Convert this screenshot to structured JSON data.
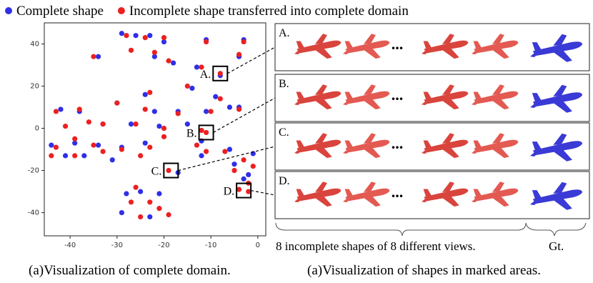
{
  "chart_data": {
    "type": "scatter",
    "series": [
      {
        "name": "Complete shape",
        "color": "#2f2fe8",
        "x": [
          -29,
          -26,
          -23,
          -20,
          -11,
          -3,
          -34,
          -22,
          -18,
          -13,
          -4,
          -14,
          -24,
          -9,
          -30,
          -42,
          -38,
          -22,
          -17,
          -11,
          -6,
          -4,
          -33,
          -27,
          -21,
          -15,
          -44,
          -39,
          -34,
          -29,
          -24,
          -12,
          -6,
          -41,
          -37,
          -31,
          -12,
          -1,
          -5,
          -2,
          -28,
          -25,
          -21,
          -29,
          -23,
          -3,
          -17,
          -8
        ],
        "y": [
          45,
          44,
          44,
          41,
          42,
          42,
          34,
          34,
          31,
          29,
          34,
          19,
          16,
          15,
          12,
          9,
          8,
          8,
          8,
          8,
          10,
          10,
          2,
          2,
          1,
          2,
          -8,
          -7,
          -8,
          -9,
          -7,
          -6,
          -10,
          -13,
          -13,
          -15,
          -13,
          -12,
          -17,
          -22,
          -31,
          -30,
          -31,
          -40,
          -42,
          -24,
          -21,
          25
        ]
      },
      {
        "name": "Incomplete shape transferred into complete domain",
        "color": "#ec2020",
        "x": [
          -28,
          -24,
          -20,
          -11,
          -3,
          -35,
          -27,
          -22,
          -19,
          -12,
          -4,
          -15,
          -23,
          -8,
          -30,
          -43,
          -38,
          -24,
          -17,
          -10,
          -4,
          -41,
          -36,
          -33,
          -26,
          -20,
          -12,
          -43,
          -39,
          -35,
          -29,
          -23,
          -20,
          -13,
          -7,
          -44,
          -39,
          -33,
          -25,
          -11,
          -3,
          -1,
          -5,
          -2,
          -26,
          -23,
          -21,
          -25,
          -27,
          -19,
          -8,
          -19,
          -11,
          -4,
          -2
        ],
        "y": [
          44,
          43,
          43,
          41,
          41,
          34,
          37,
          36,
          32,
          29,
          35,
          20,
          17,
          14,
          12,
          8,
          9,
          9,
          7,
          8,
          9,
          1,
          3,
          2,
          2,
          0,
          -1,
          -9,
          -5,
          -8,
          -10,
          -9,
          -4,
          -8,
          -11,
          -13,
          -13,
          -11,
          -13,
          -11,
          -15,
          -18,
          -20,
          -26,
          -28,
          -35,
          -38,
          -42,
          -35,
          -41,
          26,
          -20,
          -2,
          -29,
          -30
        ]
      }
    ],
    "xlim": [
      -45.5,
      1.7
    ],
    "ylim": [
      -51,
      50
    ],
    "xticks": [
      -40,
      -30,
      -20,
      -10,
      0
    ],
    "yticks": [
      40,
      20,
      0,
      -20,
      -40
    ],
    "annotations": [
      {
        "label": "A.",
        "x": -8,
        "y": 26
      },
      {
        "label": "B.",
        "x": -11,
        "y": -2
      },
      {
        "label": "C.",
        "x": -18.5,
        "y": -20
      },
      {
        "label": "D.",
        "x": -3,
        "y": -29.5
      }
    ]
  },
  "panels": {
    "rows": [
      {
        "label": "A."
      },
      {
        "label": "B."
      },
      {
        "label": "C."
      },
      {
        "label": "D."
      }
    ],
    "ellipsis": "...",
    "views_label": "8 incomplete shapes of 8 different views.",
    "gt_label": "Gt."
  },
  "captions": [
    "(a)Visualization of complete domain.",
    "(a)Visualization of shapes in marked areas."
  ]
}
